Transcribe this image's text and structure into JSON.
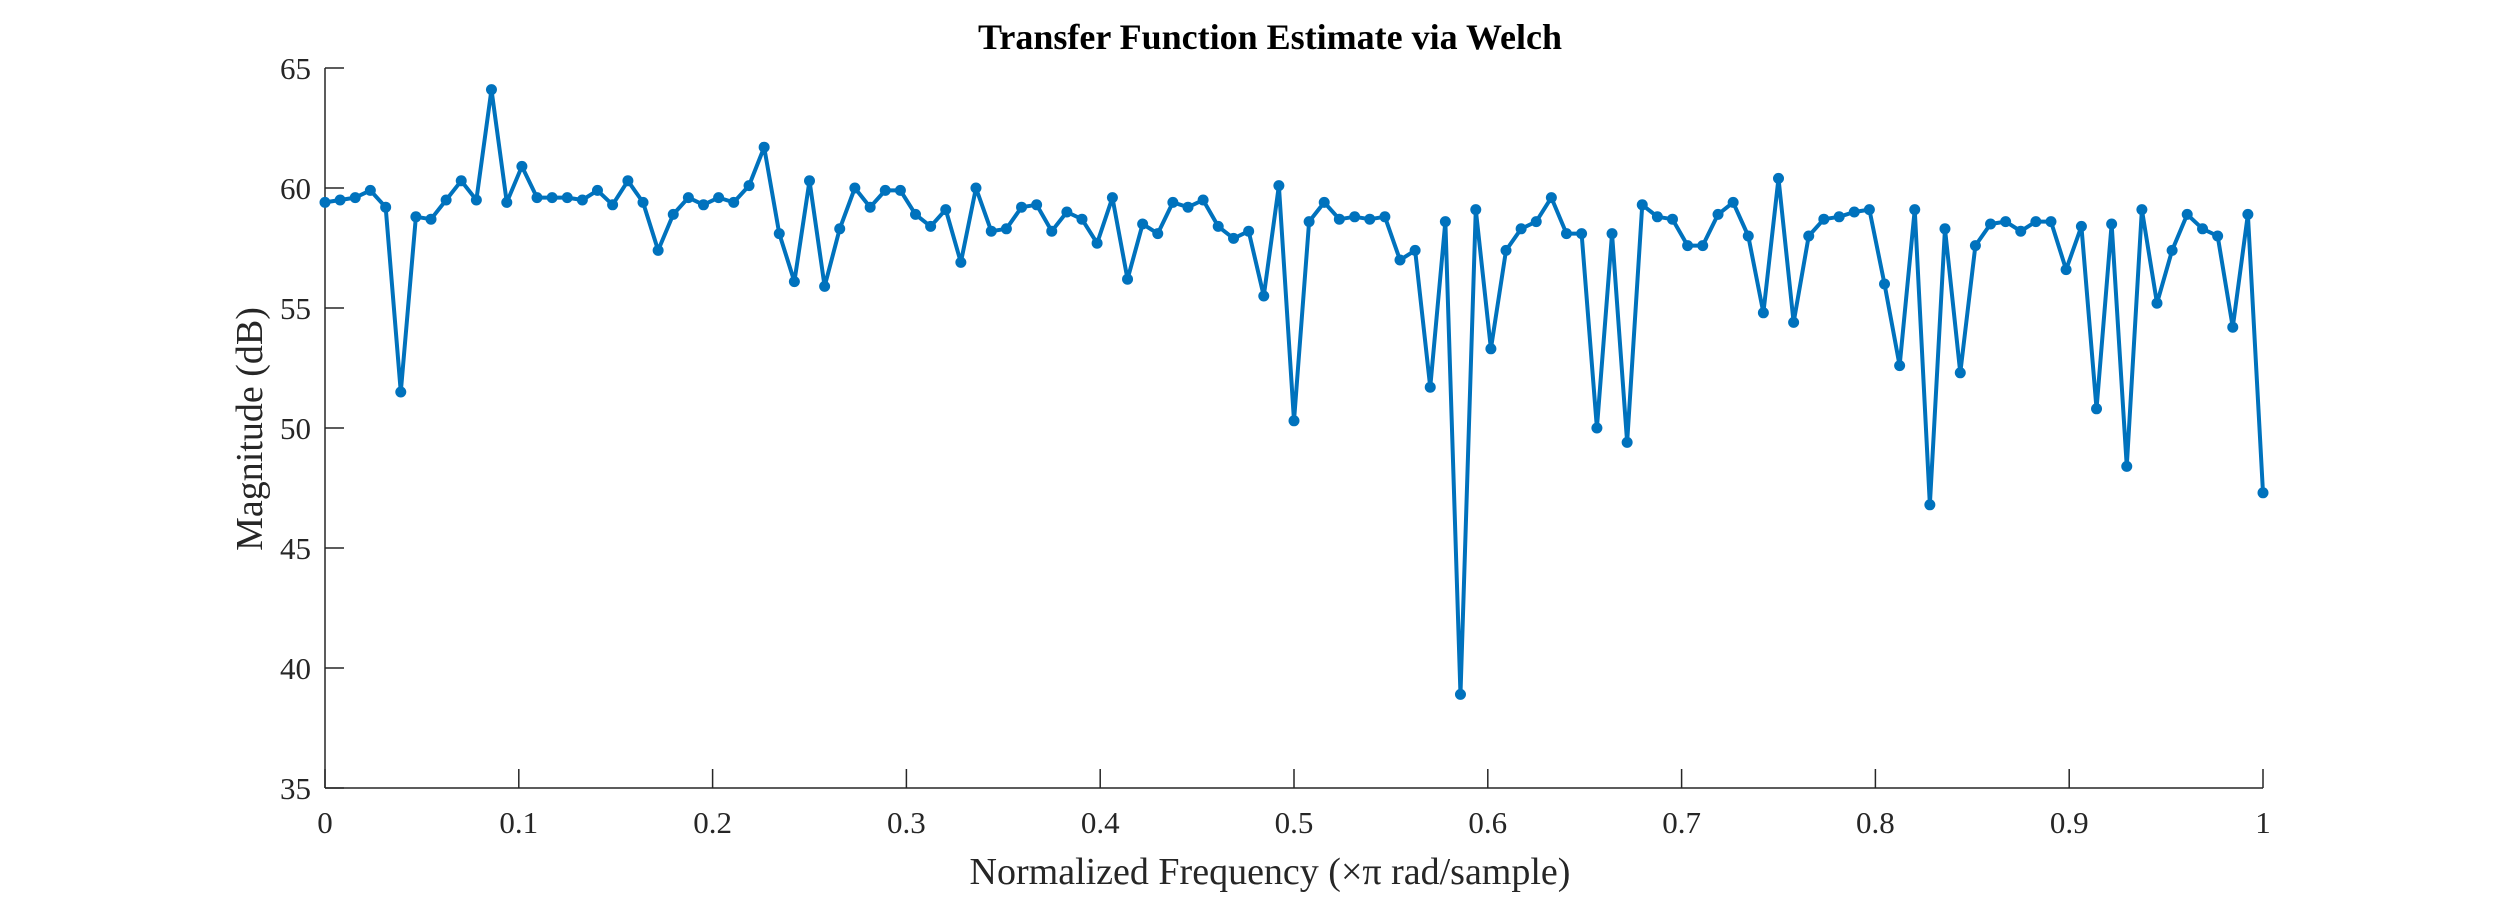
{
  "chart_data": {
    "type": "line",
    "title": "Transfer Function Estimate via Welch",
    "xlabel": "Normalized Frequency  (×π rad/sample)",
    "ylabel": "Magnitude (dB)",
    "xlim": [
      0,
      1
    ],
    "ylim": [
      35,
      65
    ],
    "xticks": [
      "0",
      "0.1",
      "0.2",
      "0.3",
      "0.4",
      "0.5",
      "0.6",
      "0.7",
      "0.8",
      "0.9",
      "1"
    ],
    "yticks": [
      "35",
      "40",
      "45",
      "50",
      "55",
      "60",
      "65"
    ],
    "grid": false,
    "legend": "none",
    "line_color": "#0072BD",
    "x": [
      0.0,
      0.0078,
      0.0156,
      0.0234,
      0.0313,
      0.0391,
      0.0469,
      0.0547,
      0.0625,
      0.0703,
      0.0781,
      0.0859,
      0.0938,
      0.1016,
      0.1094,
      0.1172,
      0.125,
      0.1328,
      0.1406,
      0.1484,
      0.1563,
      0.1641,
      0.1719,
      0.1797,
      0.1875,
      0.1953,
      0.2031,
      0.2109,
      0.2188,
      0.2266,
      0.2344,
      0.2422,
      0.25,
      0.2578,
      0.2656,
      0.2734,
      0.2813,
      0.2891,
      0.2969,
      0.3047,
      0.3125,
      0.3203,
      0.3281,
      0.3359,
      0.3438,
      0.3516,
      0.3594,
      0.3672,
      0.375,
      0.3828,
      0.3906,
      0.3984,
      0.4063,
      0.4141,
      0.4219,
      0.4297,
      0.4375,
      0.4453,
      0.4531,
      0.4609,
      0.4688,
      0.4766,
      0.4844,
      0.4922,
      0.5,
      0.5078,
      0.5156,
      0.5234,
      0.5313,
      0.5391,
      0.5469,
      0.5547,
      0.5625,
      0.5703,
      0.5781,
      0.5859,
      0.5938,
      0.6016,
      0.6094,
      0.6172,
      0.625,
      0.6328,
      0.6406,
      0.6484,
      0.6563,
      0.6641,
      0.6719,
      0.6797,
      0.6875,
      0.6953,
      0.7031,
      0.7109,
      0.7188,
      0.7266,
      0.7344,
      0.7422,
      0.75,
      0.7578,
      0.7656,
      0.7734,
      0.7813,
      0.7891,
      0.7969,
      0.8047,
      0.8125,
      0.8203,
      0.8281,
      0.8359,
      0.8438,
      0.8516,
      0.8594,
      0.8672,
      0.875,
      0.8828,
      0.8906,
      0.8984,
      0.9063,
      0.9141,
      0.9219,
      0.9297,
      0.9375,
      0.9453,
      0.9531,
      0.9609,
      0.9688,
      0.9766,
      0.9844,
      0.9922,
      1.0
    ],
    "y": [
      59.4,
      59.5,
      59.6,
      59.9,
      59.2,
      51.5,
      58.8,
      58.7,
      59.5,
      60.3,
      59.5,
      64.1,
      59.4,
      60.9,
      59.6,
      59.6,
      59.6,
      59.5,
      59.9,
      59.3,
      60.3,
      59.4,
      57.4,
      58.9,
      59.6,
      59.3,
      59.6,
      59.4,
      60.1,
      61.7,
      58.1,
      56.1,
      60.3,
      55.9,
      58.3,
      60.0,
      59.2,
      59.9,
      59.9,
      58.9,
      58.4,
      59.1,
      56.9,
      60.0,
      58.2,
      58.3,
      59.2,
      59.3,
      58.2,
      59.0,
      58.7,
      57.7,
      59.6,
      56.2,
      58.5,
      58.1,
      59.4,
      59.2,
      59.5,
      58.4,
      57.9,
      58.2,
      55.5,
      60.1,
      50.3,
      58.6,
      59.4,
      58.7,
      58.8,
      58.7,
      58.8,
      57.0,
      57.4,
      51.7,
      58.6,
      38.9,
      59.1,
      53.3,
      57.4,
      58.3,
      58.6,
      59.6,
      58.1,
      58.1,
      50.0,
      58.1,
      49.4,
      59.3,
      58.8,
      58.7,
      57.6,
      57.6,
      58.9,
      59.4,
      58.0,
      54.8,
      60.4,
      54.4,
      58.0,
      58.7,
      58.8,
      59.0,
      59.1,
      56.0,
      52.6,
      59.1,
      46.8,
      58.3,
      52.3,
      57.6,
      58.5,
      58.6,
      58.2,
      58.6,
      58.6,
      56.6,
      58.4,
      50.8,
      58.5,
      48.4,
      59.1,
      55.2,
      57.4,
      58.9,
      58.3,
      58.0,
      54.2,
      58.9,
      47.3
    ]
  }
}
